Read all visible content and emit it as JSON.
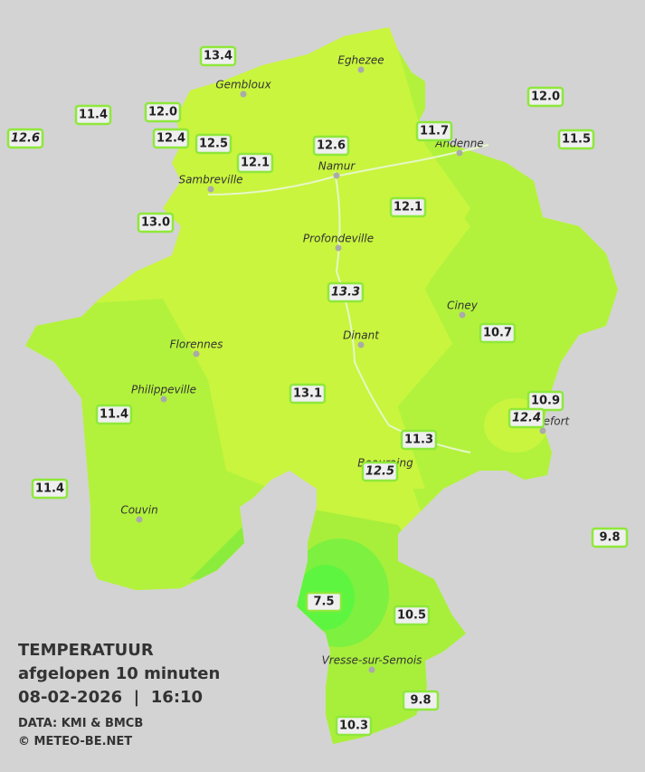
{
  "legend": {
    "title": "TEMPERATUUR",
    "subtitle": "afgelopen 10 minuten",
    "datetime": "08-02-2026  |  16:10",
    "source": "DATA: KMI & BMCB",
    "copyright": "© METEO-BE.NET"
  },
  "cities": [
    {
      "name": "Eghezee"
    },
    {
      "name": "Gembloux"
    },
    {
      "name": "Andenne"
    },
    {
      "name": "Namur"
    },
    {
      "name": "Sambreville"
    },
    {
      "name": "Profondeville"
    },
    {
      "name": "Ciney"
    },
    {
      "name": "Dinant"
    },
    {
      "name": "Florennes"
    },
    {
      "name": "Philippeville"
    },
    {
      "name": "Rochefort"
    },
    {
      "name": "Beauraing"
    },
    {
      "name": "Couvin"
    },
    {
      "name": "Vresse-sur-Semois"
    }
  ],
  "stations": [
    {
      "value": "13.4"
    },
    {
      "value": "12.0"
    },
    {
      "value": "11.4"
    },
    {
      "value": "12.6",
      "italic": true
    },
    {
      "value": "12.4"
    },
    {
      "value": "12.5"
    },
    {
      "value": "12.1"
    },
    {
      "value": "12.6"
    },
    {
      "value": "11.7"
    },
    {
      "value": "12.0"
    },
    {
      "value": "11.5"
    },
    {
      "value": "13.0"
    },
    {
      "value": "12.1"
    },
    {
      "value": "13.3",
      "italic": true
    },
    {
      "value": "10.7"
    },
    {
      "value": "13.1"
    },
    {
      "value": "10.9"
    },
    {
      "value": "12.4",
      "italic": true
    },
    {
      "value": "11.4"
    },
    {
      "value": "11.3"
    },
    {
      "value": "12.5",
      "italic": true
    },
    {
      "value": "11.4"
    },
    {
      "value": "9.8"
    },
    {
      "value": "7.5"
    },
    {
      "value": "10.5"
    },
    {
      "value": "9.8"
    },
    {
      "value": "10.3"
    }
  ]
}
